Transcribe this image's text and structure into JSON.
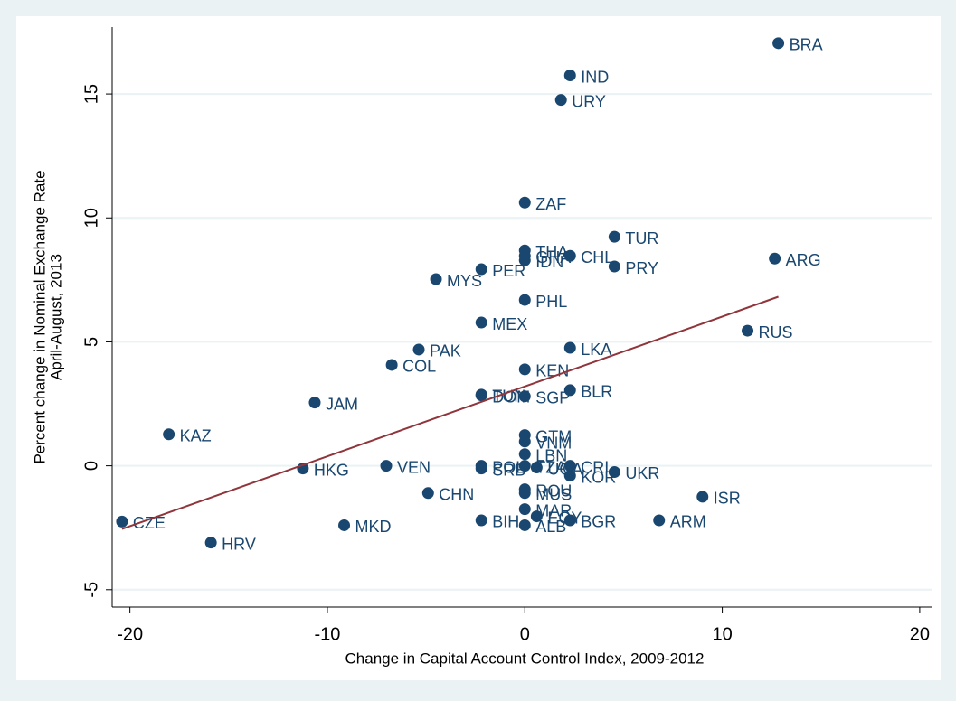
{
  "chart_data": {
    "type": "scatter",
    "xlabel": "Change in Capital Account Control Index, 2009-2012",
    "ylabel": [
      "Percent change in Nominal Exchange Rate",
      "April-August, 2013"
    ],
    "xlim": [
      -20.9,
      20.6
    ],
    "ylim": [
      -5.7,
      17.7
    ],
    "xticks": [
      -20,
      -10,
      0,
      10,
      20
    ],
    "yticks": [
      -5,
      0,
      5,
      10,
      15
    ],
    "grid": true,
    "color": "#1a476f",
    "point_labels": [
      "BRA",
      "IND",
      "URY",
      "ZAF",
      "TUR",
      "THA",
      "GHA",
      "IDN",
      "CHL",
      "PRY",
      "ARG",
      "PER",
      "MYS",
      "PHL",
      "MEX",
      "RUS",
      "LKA",
      "PAK",
      "COL",
      "KEN",
      "BLR",
      "TUN",
      "DOM",
      "SGP",
      "JAM",
      "KAZ",
      "GTM",
      "VNM",
      "LBN",
      "HKG",
      "VEN",
      "POL",
      "SRB",
      "TZA",
      "UGA",
      "CRI",
      "KOR",
      "UKR",
      "ROU",
      "MUS",
      "CHN",
      "ISR",
      "MAR",
      "EGY",
      "BIH",
      "BGR",
      "ALB",
      "ARM",
      "MKD",
      "HRV",
      "CZE"
    ],
    "x": [
      12.84,
      2.29,
      1.83,
      0,
      4.54,
      0,
      0,
      0,
      2.29,
      4.54,
      12.66,
      -2.2,
      -4.5,
      0,
      -2.2,
      11.28,
      2.29,
      -5.37,
      -6.74,
      0,
      2.29,
      -2.2,
      -2.2,
      0,
      -10.64,
      -18.03,
      0,
      0,
      0,
      -11.24,
      -7.02,
      -2.2,
      -2.2,
      0,
      0.6,
      2.29,
      2.29,
      4.54,
      0,
      0,
      -4.9,
      9.0,
      0,
      0.6,
      -2.2,
      2.29,
      0,
      6.8,
      -9.15,
      -15.9,
      -20.4
    ],
    "y": [
      17.05,
      15.75,
      14.76,
      10.62,
      9.24,
      8.69,
      8.47,
      8.29,
      8.47,
      8.04,
      8.36,
      7.93,
      7.53,
      6.69,
      5.78,
      5.45,
      4.76,
      4.69,
      4.07,
      3.89,
      3.05,
      2.87,
      2.84,
      2.8,
      2.55,
      1.27,
      1.24,
      0.98,
      0.47,
      -0.11,
      0,
      0,
      -0.11,
      0,
      -0.07,
      0,
      -0.4,
      -0.25,
      -0.95,
      -1.1,
      -1.1,
      -1.25,
      -1.75,
      -2.04,
      -2.2,
      -2.2,
      -2.4,
      -2.2,
      -2.4,
      -3.1,
      -2.25
    ],
    "fit_line": {
      "color": "#90353b",
      "x": [
        -20.4,
        12.84
      ],
      "y": [
        -2.55,
        6.82
      ]
    }
  }
}
